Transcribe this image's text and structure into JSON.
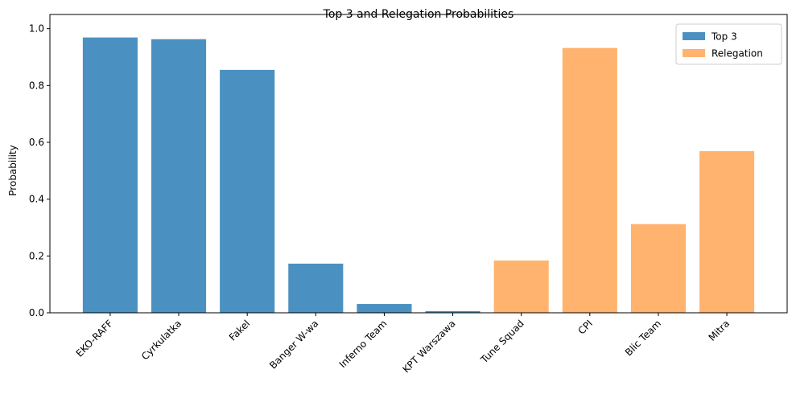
{
  "chart_data": {
    "type": "bar",
    "title": "Top 3 and Relegation Probabilities",
    "ylabel": "Probability",
    "categories": [
      "EKO-RAFF",
      "Cyrkulatka",
      "Fakel",
      "Banger W-wa",
      "Inferno Team",
      "KPT Warszawa",
      "Tune Squad",
      "CPI",
      "Blic Team",
      "Mitra"
    ],
    "series": [
      {
        "name": "Top 3",
        "color": "#4a91c2",
        "values": [
          0.969,
          0.963,
          0.855,
          0.173,
          0.031,
          0.006,
          null,
          null,
          null,
          null
        ]
      },
      {
        "name": "Relegation",
        "color": "#ffb36e",
        "values": [
          null,
          null,
          null,
          null,
          null,
          null,
          0.184,
          0.932,
          0.312,
          0.569
        ]
      }
    ],
    "ylim": [
      0,
      1.05
    ],
    "yticks": [
      {
        "value": 0,
        "label": "0.0"
      },
      0.2,
      0.4,
      0.6,
      0.8,
      {
        "value": 1,
        "label": "1.0"
      }
    ],
    "legend": "upper right",
    "grid": false
  }
}
